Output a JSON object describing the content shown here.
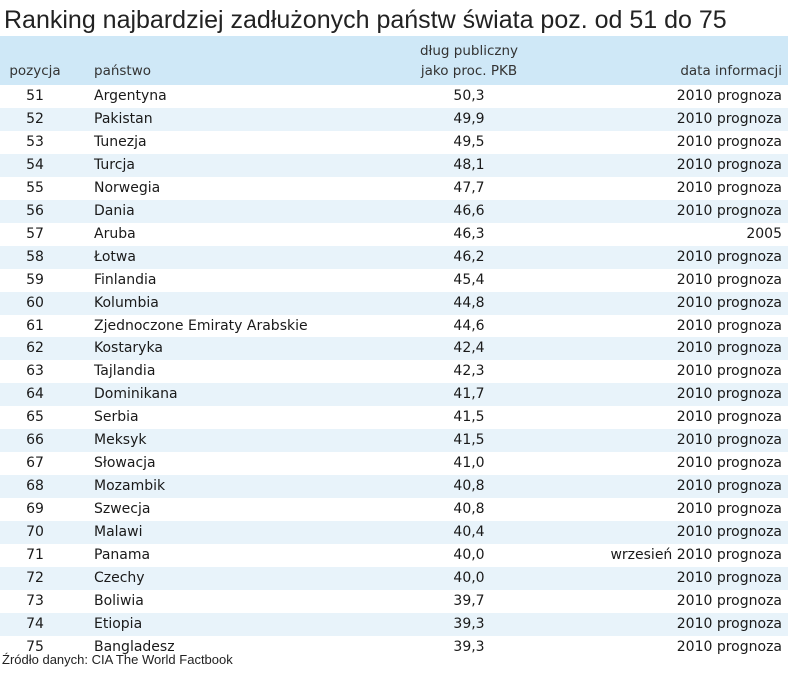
{
  "title": "Ranking najbardziej zadłużonych państw świata poz. od 51 do 75",
  "columns": {
    "position": "pozycja",
    "country": "państwo",
    "debt_line1": "dług publiczny",
    "debt_line2": "jako proc. PKB",
    "date": "data informacji"
  },
  "rows": [
    {
      "pos": "51",
      "country": "Argentyna",
      "debt": "50,3",
      "date": "2010 prognoza"
    },
    {
      "pos": "52",
      "country": "Pakistan",
      "debt": "49,9",
      "date": "2010 prognoza"
    },
    {
      "pos": "53",
      "country": "Tunezja",
      "debt": "49,5",
      "date": "2010 prognoza"
    },
    {
      "pos": "54",
      "country": "Turcja",
      "debt": "48,1",
      "date": "2010 prognoza"
    },
    {
      "pos": "55",
      "country": "Norwegia",
      "debt": "47,7",
      "date": "2010 prognoza"
    },
    {
      "pos": "56",
      "country": "Dania",
      "debt": "46,6",
      "date": "2010 prognoza"
    },
    {
      "pos": "57",
      "country": "Aruba",
      "debt": "46,3",
      "date": "2005"
    },
    {
      "pos": "58",
      "country": "Łotwa",
      "debt": "46,2",
      "date": "2010 prognoza"
    },
    {
      "pos": "59",
      "country": "Finlandia",
      "debt": "45,4",
      "date": "2010 prognoza"
    },
    {
      "pos": "60",
      "country": "Kolumbia",
      "debt": "44,8",
      "date": "2010 prognoza"
    },
    {
      "pos": "61",
      "country": "Zjednoczone Emiraty Arabskie",
      "debt": "44,6",
      "date": "2010 prognoza"
    },
    {
      "pos": "62",
      "country": "Kostaryka",
      "debt": "42,4",
      "date": "2010 prognoza"
    },
    {
      "pos": "63",
      "country": "Tajlandia",
      "debt": "42,3",
      "date": "2010 prognoza"
    },
    {
      "pos": "64",
      "country": "Dominikana",
      "debt": "41,7",
      "date": "2010 prognoza"
    },
    {
      "pos": "65",
      "country": "Serbia",
      "debt": "41,5",
      "date": "2010 prognoza"
    },
    {
      "pos": "66",
      "country": "Meksyk",
      "debt": "41,5",
      "date": "2010 prognoza"
    },
    {
      "pos": "67",
      "country": "Słowacja",
      "debt": "41,0",
      "date": "2010 prognoza"
    },
    {
      "pos": "68",
      "country": "Mozambik",
      "debt": "40,8",
      "date": "2010 prognoza"
    },
    {
      "pos": "69",
      "country": "Szwecja",
      "debt": "40,8",
      "date": "2010 prognoza"
    },
    {
      "pos": "70",
      "country": "Malawi",
      "debt": "40,4",
      "date": "2010 prognoza"
    },
    {
      "pos": "71",
      "country": "Panama",
      "debt": "40,0",
      "date": "wrzesień 2010 prognoza"
    },
    {
      "pos": "72",
      "country": "Czechy",
      "debt": "40,0",
      "date": "2010 prognoza"
    },
    {
      "pos": "73",
      "country": "Boliwia",
      "debt": "39,7",
      "date": "2010 prognoza"
    },
    {
      "pos": "74",
      "country": "Etiopia",
      "debt": "39,3",
      "date": "2010 prognoza"
    },
    {
      "pos": "75",
      "country": "Bangladesz",
      "debt": "39,3",
      "date": "2010 prognoza"
    }
  ],
  "source": "Źródło danych: CIA The World Factbook",
  "colors": {
    "header_bg": "#cfe8f7",
    "stripe_bg": "#e8f3fa"
  }
}
